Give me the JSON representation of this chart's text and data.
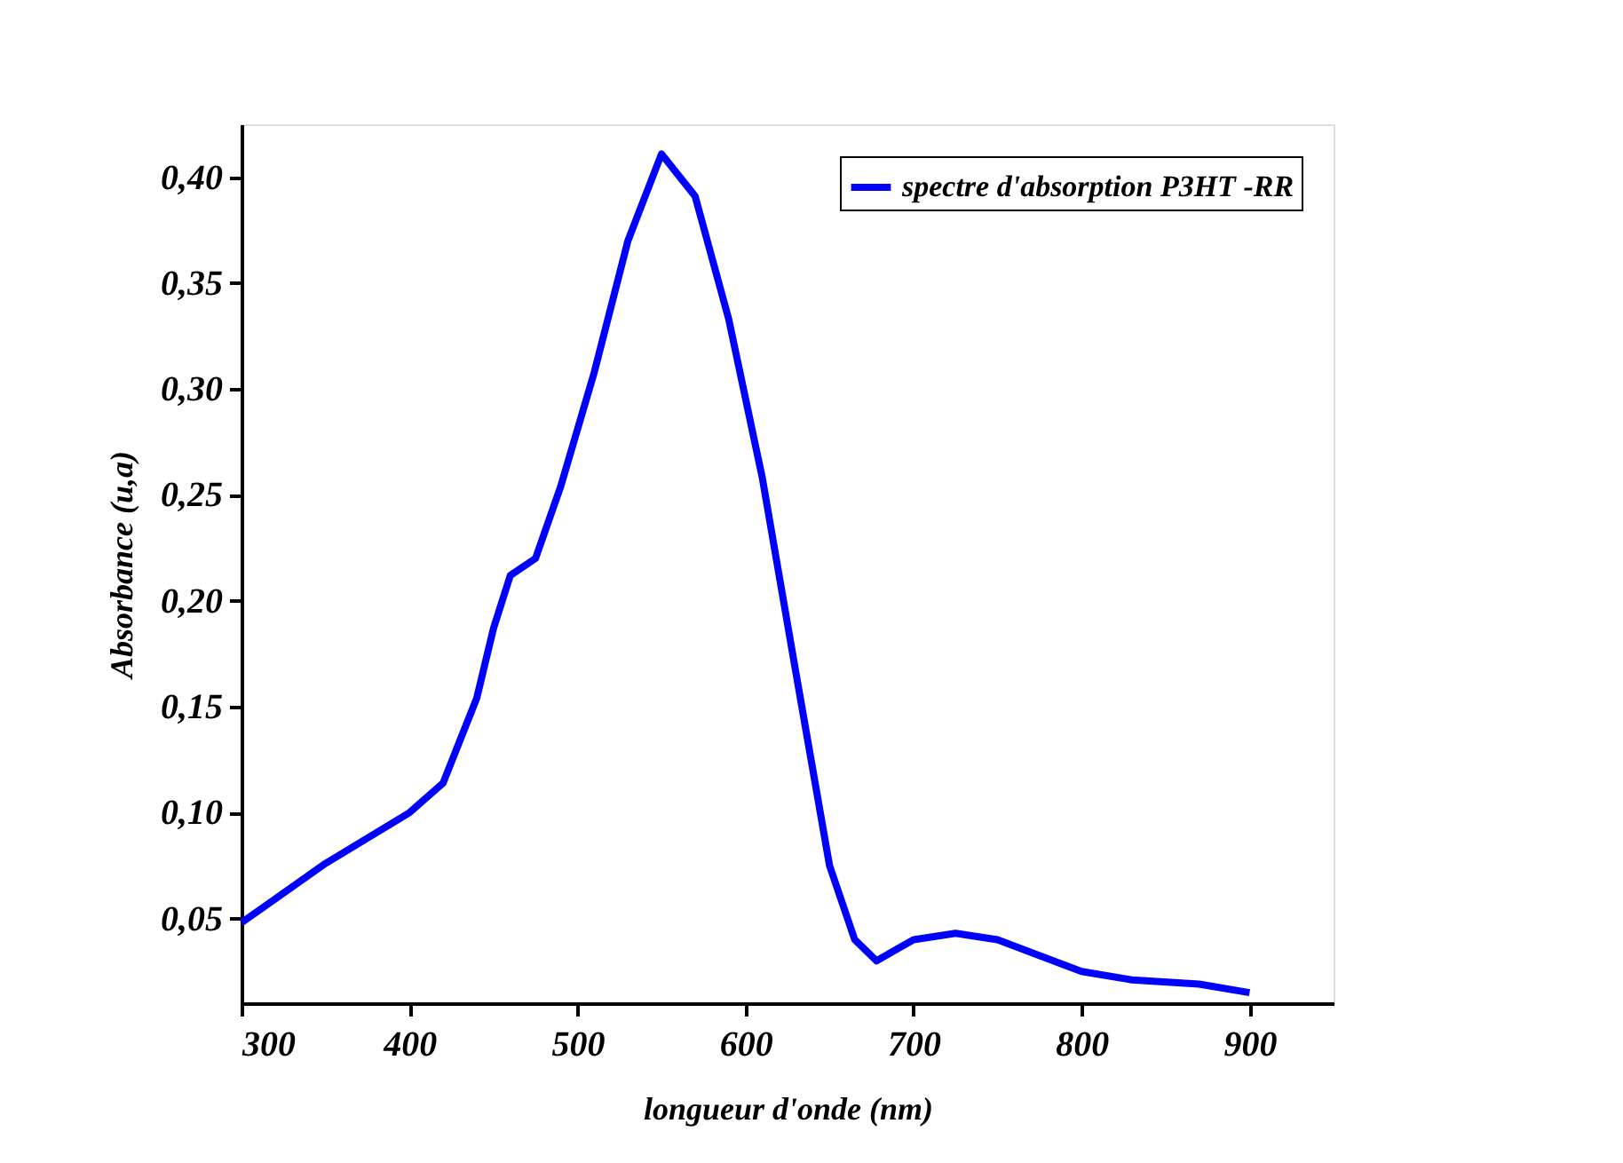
{
  "chart_data": {
    "type": "line",
    "xlabel": "longueur d'onde (nm)",
    "ylabel": "Absorbance (u,a)",
    "xlim": [
      300,
      950
    ],
    "xticks": [
      300,
      400,
      500,
      600,
      700,
      800,
      900
    ],
    "ylim": [
      0.01,
      0.425
    ],
    "yticks": [
      {
        "value": 0.05,
        "label": "0,05"
      },
      {
        "value": 0.1,
        "label": "0,10"
      },
      {
        "value": 0.15,
        "label": "0,15"
      },
      {
        "value": 0.2,
        "label": "0,20"
      },
      {
        "value": 0.25,
        "label": "0,25"
      },
      {
        "value": 0.3,
        "label": "0,30"
      },
      {
        "value": 0.35,
        "label": "0,35"
      },
      {
        "value": 0.4,
        "label": "0,40"
      }
    ],
    "grid": false,
    "legend": "top right",
    "line_style": "solid",
    "marker": "none",
    "series": [
      {
        "name": "spectre d'absorption P3HT -RR",
        "color": "#0000ff",
        "x": [
          300,
          350,
          400,
          420,
          440,
          450,
          460,
          475,
          490,
          510,
          530,
          550,
          570,
          590,
          610,
          630,
          650,
          665,
          678,
          700,
          725,
          750,
          780,
          800,
          830,
          870,
          900
        ],
        "values": [
          0.048,
          0.076,
          0.1,
          0.114,
          0.154,
          0.187,
          0.212,
          0.22,
          0.254,
          0.308,
          0.37,
          0.411,
          0.391,
          0.333,
          0.258,
          0.166,
          0.075,
          0.04,
          0.03,
          0.04,
          0.043,
          0.04,
          0.031,
          0.025,
          0.021,
          0.019,
          0.015
        ]
      }
    ]
  }
}
